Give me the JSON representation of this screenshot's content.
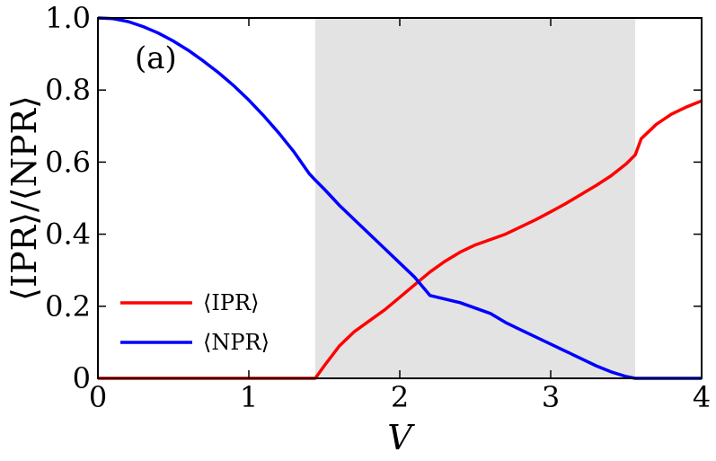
{
  "chart_data": {
    "type": "line",
    "xlabel": "V",
    "ylabel": "⟨IPR⟩/⟨NPR⟩",
    "panel_label": "(a)",
    "xlim": [
      0,
      4
    ],
    "ylim": [
      0,
      1.0
    ],
    "x_ticks": [
      0,
      1,
      2,
      3,
      4
    ],
    "x_tick_labels": [
      "0",
      "1",
      "2",
      "3",
      "4"
    ],
    "y_ticks": [
      0,
      0.2,
      0.4,
      0.6,
      0.8,
      1.0
    ],
    "y_tick_labels": [
      "0",
      "0.2",
      "0.4",
      "0.6",
      "0.8",
      "1.0"
    ],
    "grid": false,
    "legend_position": "lower-left",
    "shaded_region": {
      "x_start": 1.44,
      "x_end": 3.56,
      "color": "#e3e3e3"
    },
    "series": [
      {
        "name": "⟨IPR⟩",
        "color": "#ff0000",
        "x": [
          0,
          1.0,
          1.44,
          1.5,
          1.6,
          1.7,
          1.8,
          1.9,
          2.0,
          2.1,
          2.2,
          2.3,
          2.4,
          2.5,
          2.6,
          2.7,
          2.8,
          2.9,
          3.0,
          3.1,
          3.2,
          3.3,
          3.4,
          3.5,
          3.56,
          3.6,
          3.7,
          3.8,
          3.9,
          4.0
        ],
        "y": [
          0,
          0,
          0,
          0.035,
          0.09,
          0.13,
          0.16,
          0.19,
          0.225,
          0.26,
          0.295,
          0.325,
          0.35,
          0.37,
          0.385,
          0.4,
          0.42,
          0.44,
          0.462,
          0.485,
          0.51,
          0.535,
          0.562,
          0.595,
          0.62,
          0.665,
          0.705,
          0.733,
          0.753,
          0.77
        ]
      },
      {
        "name": "⟨NPR⟩",
        "color": "#0000ff",
        "x": [
          0,
          0.1,
          0.2,
          0.3,
          0.4,
          0.5,
          0.6,
          0.7,
          0.8,
          0.9,
          1.0,
          1.1,
          1.2,
          1.3,
          1.4,
          1.44,
          1.5,
          1.6,
          1.7,
          1.8,
          1.9,
          2.0,
          2.1,
          2.2,
          2.3,
          2.4,
          2.5,
          2.6,
          2.7,
          2.8,
          2.9,
          3.0,
          3.1,
          3.2,
          3.3,
          3.4,
          3.5,
          3.56,
          3.6,
          3.8,
          4.0
        ],
        "y": [
          1.0,
          0.998,
          0.99,
          0.976,
          0.958,
          0.936,
          0.91,
          0.88,
          0.848,
          0.812,
          0.772,
          0.728,
          0.68,
          0.628,
          0.568,
          0.55,
          0.525,
          0.48,
          0.44,
          0.4,
          0.36,
          0.32,
          0.28,
          0.23,
          0.22,
          0.21,
          0.195,
          0.18,
          0.155,
          0.135,
          0.115,
          0.095,
          0.075,
          0.055,
          0.035,
          0.018,
          0.005,
          0.0,
          0.0,
          0.0,
          0.0
        ]
      }
    ]
  }
}
